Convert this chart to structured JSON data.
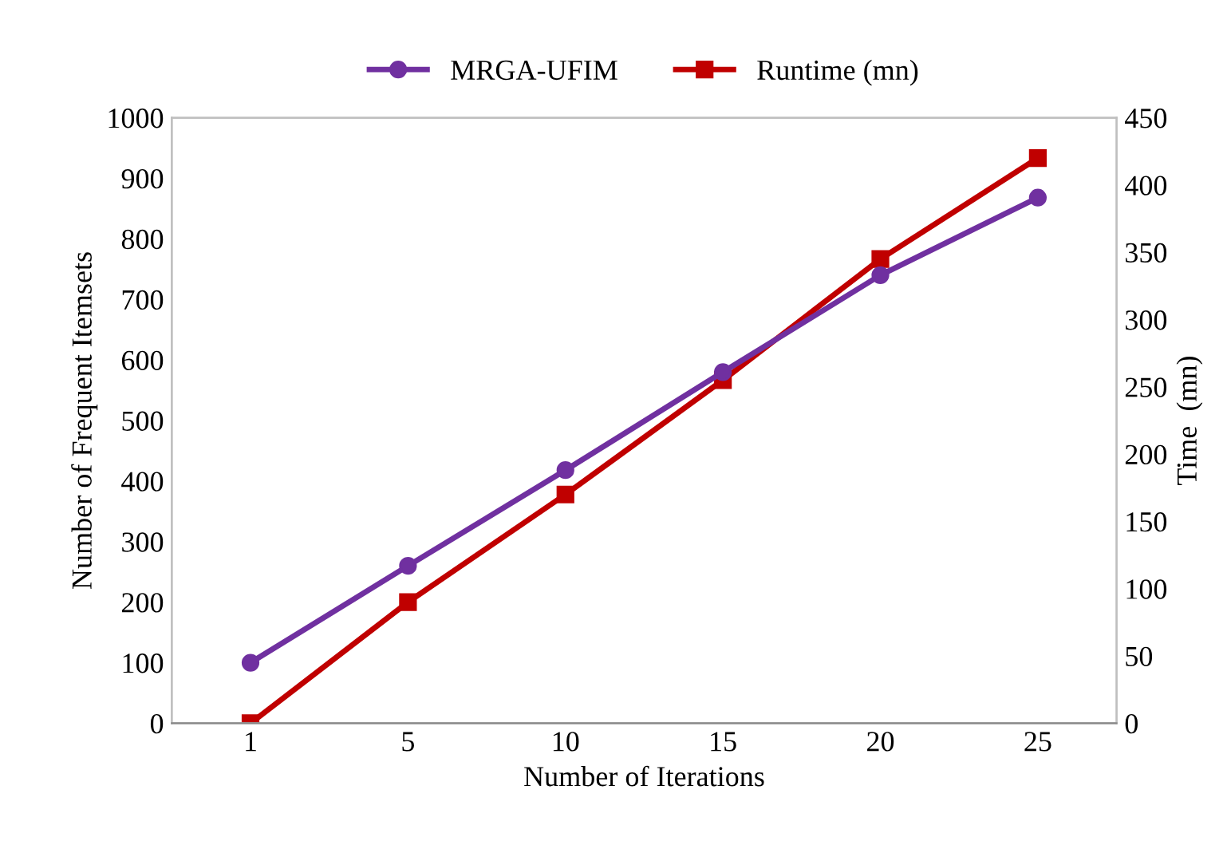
{
  "chart_data": {
    "type": "line",
    "xlabel": "Number of Iterations",
    "ylabel": "Number of Frequent Itemsets",
    "y2label": "Time  (mn)",
    "categories": [
      "1",
      "5",
      "10",
      "15",
      "20",
      "25"
    ],
    "series": [
      {
        "name": "MRGA-UFIM",
        "color": "#7030a0",
        "marker": "circle",
        "values": [
          100,
          260,
          418,
          580,
          740,
          868
        ]
      },
      {
        "name": "Runtime (mn)",
        "color": "#c00000",
        "marker": "square",
        "axis": "y2",
        "values": [
          0,
          90,
          170,
          255,
          345,
          420
        ]
      }
    ],
    "ylim": [
      0,
      1000
    ],
    "yticks": [
      0,
      100,
      200,
      300,
      400,
      500,
      600,
      700,
      800,
      900,
      1000
    ],
    "y2lim": [
      0,
      450
    ],
    "y2ticks": [
      0,
      50,
      100,
      150,
      200,
      250,
      300,
      350,
      400,
      450
    ],
    "legend": "top",
    "line_style": "solid"
  }
}
